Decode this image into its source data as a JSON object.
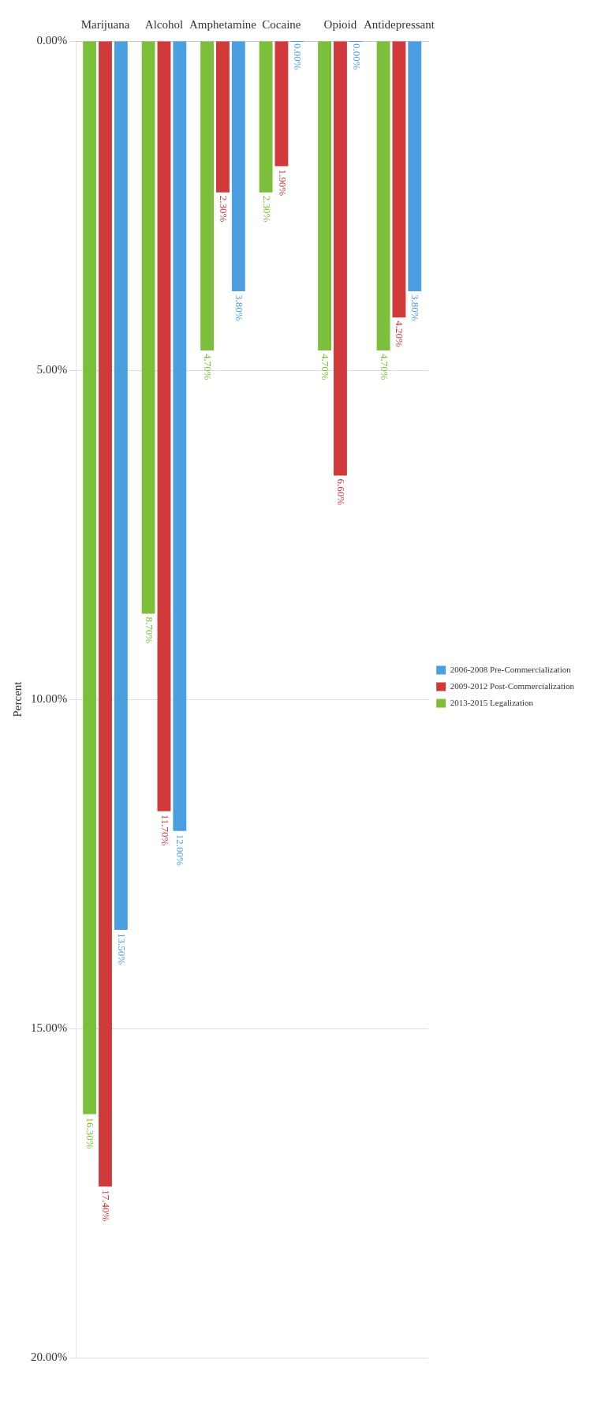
{
  "chart_data": {
    "type": "bar",
    "ylabel": "Percent",
    "categories": [
      "Marijuana",
      "Alcohol",
      "Amphetamine",
      "Cocaine",
      "Opioid",
      "Antidepressant"
    ],
    "series": [
      {
        "name": "2006-2008 Pre-Commercialization",
        "color": "#4a9fe0",
        "values": [
          13.5,
          12.0,
          3.8,
          0,
          0,
          3.8
        ],
        "value_labels": [
          "13.50%",
          "12.00%",
          "3.80%",
          "0.00%",
          "0.00%",
          "3.80%"
        ]
      },
      {
        "name": "2009-2012 Post-Commercialization",
        "color": "#d03a3a",
        "values": [
          17.4,
          11.7,
          2.3,
          1.9,
          6.6,
          4.2
        ],
        "value_labels": [
          "17.40%",
          "11.70%",
          "2.30%",
          "1.90%",
          "6.60%",
          "4.20%"
        ]
      },
      {
        "name": "2013-2015 Legalization",
        "color": "#7cbf3a",
        "values": [
          16.3,
          8.7,
          4.7,
          2.3,
          4.7,
          4.7
        ],
        "value_labels": [
          "16.30%",
          "8.70%",
          "4.70%",
          "2.30%",
          "4.70%",
          "4.70%"
        ]
      }
    ],
    "ylim": [
      20,
      0
    ],
    "yticks": [
      {
        "value": 0,
        "label": "0.00%"
      },
      {
        "value": 5,
        "label": "5.00%"
      },
      {
        "value": 10,
        "label": "10.00%"
      },
      {
        "value": 15,
        "label": "15.00%"
      },
      {
        "value": 20,
        "label": "20.00%"
      }
    ],
    "grid": "y",
    "legend": "right"
  }
}
